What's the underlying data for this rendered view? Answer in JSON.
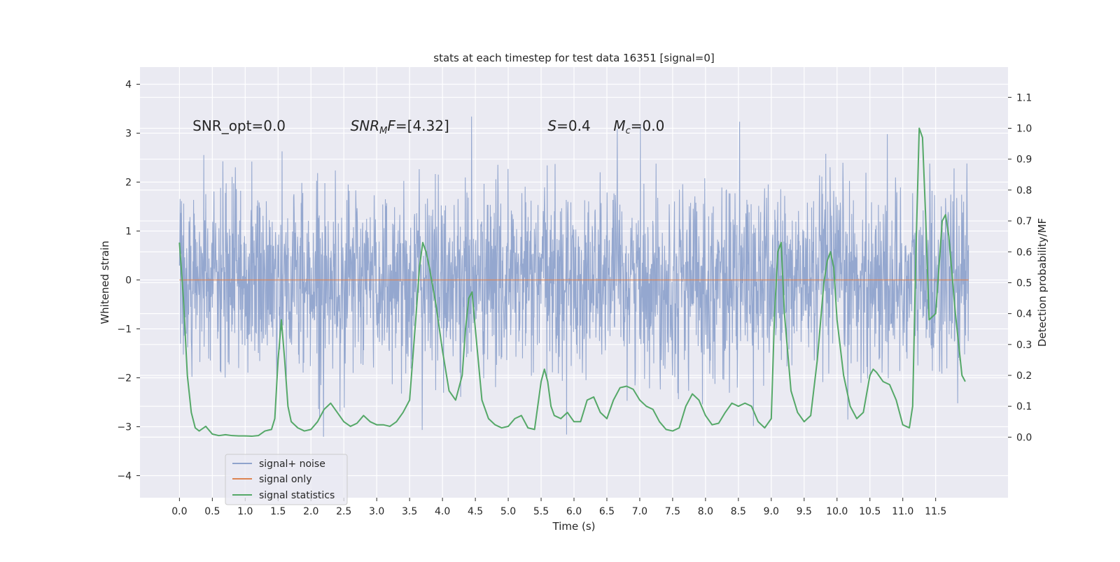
{
  "chart_data": {
    "type": "line",
    "title": "stats at each timestep for test data 16351 [signal=0]",
    "xlabel": "Time (s)",
    "ylabel": "Whitened strain",
    "y2label": "Detection probability/MF",
    "xlim": [
      -0.6,
      12.6
    ],
    "ylim": [
      -4.45,
      4.35
    ],
    "y2lim": [
      -0.196,
      1.198
    ],
    "x_ticks": [
      0.0,
      0.5,
      1.0,
      1.5,
      2.0,
      2.5,
      3.0,
      3.5,
      4.0,
      4.5,
      5.0,
      5.5,
      6.0,
      6.5,
      7.0,
      7.5,
      8.0,
      8.5,
      9.0,
      9.5,
      10.0,
      10.5,
      11.0,
      11.5
    ],
    "x_tick_labels": [
      "0.0",
      "0.5",
      "1.0",
      "1.5",
      "2.0",
      "2.5",
      "3.0",
      "3.5",
      "4.0",
      "4.5",
      "5.0",
      "5.5",
      "6.0",
      "6.5",
      "7.0",
      "7.5",
      "8.0",
      "8.5",
      "9.0",
      "9.5",
      "10.0",
      "10.5",
      "11.0",
      "11.5"
    ],
    "y_ticks": [
      -4,
      -3,
      -2,
      -1,
      0,
      1,
      2,
      3,
      4
    ],
    "y_tick_labels": [
      "−4",
      "−3",
      "−2",
      "−1",
      "0",
      "1",
      "2",
      "3",
      "4"
    ],
    "y2_ticks": [
      0.0,
      0.1,
      0.2,
      0.3,
      0.4,
      0.5,
      0.6,
      0.7,
      0.8,
      0.9,
      1.0,
      1.1
    ],
    "y2_tick_labels": [
      "0.0",
      "0.1",
      "0.2",
      "0.3",
      "0.4",
      "0.5",
      "0.6",
      "0.7",
      "0.8",
      "0.9",
      "1.0",
      "1.1"
    ],
    "grid": true,
    "legend_position": "lower-left",
    "annotations": [
      {
        "text": "SNR_opt=0.0",
        "x": 0.2,
        "y": 3.15
      },
      {
        "text": "SNR",
        "sub": "M",
        "tail": "F=[4.32]",
        "italic": true,
        "x": 2.6,
        "y": 3.15
      },
      {
        "text": "S",
        "tail": "=0.4",
        "italic": true,
        "x": 5.6,
        "y": 3.15
      },
      {
        "text": "M",
        "sub": "c",
        "tail": "=0.0",
        "italic": true,
        "x": 6.6,
        "y": 3.15
      }
    ],
    "series": [
      {
        "name": "signal+ noise",
        "color": "#8fa3cc",
        "axis": "left",
        "style": "noise",
        "x_range": [
          0.0,
          12.0
        ],
        "envelope": {
          "core": 1.2,
          "typical_peak": 2.3,
          "extreme_max": 3.97,
          "extreme_min": -4.07
        }
      },
      {
        "name": "signal only",
        "color": "#dd8452",
        "axis": "left",
        "x": [
          0.0,
          12.0
        ],
        "y": [
          0.0,
          0.0
        ]
      },
      {
        "name": "signal statistics",
        "color": "#55a868",
        "axis": "right",
        "x": [
          0.0,
          0.06,
          0.12,
          0.18,
          0.24,
          0.3,
          0.4,
          0.5,
          0.6,
          0.7,
          0.8,
          0.9,
          1.0,
          1.1,
          1.2,
          1.3,
          1.4,
          1.45,
          1.5,
          1.55,
          1.6,
          1.65,
          1.7,
          1.8,
          1.9,
          2.0,
          2.1,
          2.2,
          2.3,
          2.4,
          2.5,
          2.6,
          2.7,
          2.8,
          2.9,
          3.0,
          3.1,
          3.2,
          3.3,
          3.4,
          3.5,
          3.6,
          3.65,
          3.7,
          3.75,
          3.8,
          3.9,
          4.0,
          4.1,
          4.2,
          4.3,
          4.35,
          4.4,
          4.45,
          4.5,
          4.6,
          4.7,
          4.8,
          4.9,
          5.0,
          5.1,
          5.2,
          5.3,
          5.4,
          5.5,
          5.55,
          5.6,
          5.65,
          5.7,
          5.8,
          5.9,
          6.0,
          6.1,
          6.2,
          6.3,
          6.4,
          6.5,
          6.6,
          6.7,
          6.8,
          6.9,
          7.0,
          7.1,
          7.2,
          7.3,
          7.4,
          7.5,
          7.6,
          7.7,
          7.8,
          7.9,
          8.0,
          8.1,
          8.2,
          8.3,
          8.4,
          8.5,
          8.6,
          8.7,
          8.8,
          8.9,
          9.0,
          9.05,
          9.1,
          9.15,
          9.2,
          9.3,
          9.4,
          9.5,
          9.6,
          9.7,
          9.8,
          9.85,
          9.9,
          9.95,
          10.0,
          10.1,
          10.2,
          10.3,
          10.4,
          10.5,
          10.55,
          10.6,
          10.7,
          10.8,
          10.9,
          11.0,
          11.1,
          11.15,
          11.2,
          11.25,
          11.3,
          11.35,
          11.4,
          11.5,
          11.6,
          11.65,
          11.7,
          11.8,
          11.9,
          11.95
        ],
        "y": [
          0.63,
          0.45,
          0.2,
          0.08,
          0.03,
          0.02,
          0.035,
          0.01,
          0.005,
          0.008,
          0.005,
          0.004,
          0.004,
          0.003,
          0.005,
          0.02,
          0.025,
          0.06,
          0.25,
          0.38,
          0.25,
          0.1,
          0.05,
          0.03,
          0.02,
          0.025,
          0.05,
          0.09,
          0.11,
          0.08,
          0.05,
          0.035,
          0.045,
          0.07,
          0.05,
          0.04,
          0.04,
          0.035,
          0.05,
          0.08,
          0.12,
          0.4,
          0.55,
          0.63,
          0.6,
          0.55,
          0.43,
          0.28,
          0.15,
          0.12,
          0.2,
          0.35,
          0.45,
          0.47,
          0.35,
          0.12,
          0.06,
          0.04,
          0.03,
          0.035,
          0.06,
          0.07,
          0.03,
          0.025,
          0.18,
          0.22,
          0.18,
          0.1,
          0.07,
          0.06,
          0.08,
          0.05,
          0.05,
          0.12,
          0.13,
          0.08,
          0.06,
          0.12,
          0.16,
          0.165,
          0.155,
          0.12,
          0.1,
          0.09,
          0.05,
          0.025,
          0.02,
          0.03,
          0.1,
          0.14,
          0.12,
          0.07,
          0.04,
          0.045,
          0.08,
          0.11,
          0.1,
          0.11,
          0.1,
          0.05,
          0.03,
          0.06,
          0.4,
          0.6,
          0.63,
          0.4,
          0.15,
          0.08,
          0.05,
          0.07,
          0.25,
          0.5,
          0.57,
          0.6,
          0.55,
          0.38,
          0.2,
          0.1,
          0.06,
          0.08,
          0.2,
          0.22,
          0.21,
          0.18,
          0.17,
          0.12,
          0.04,
          0.03,
          0.1,
          0.6,
          1.0,
          0.97,
          0.7,
          0.38,
          0.4,
          0.7,
          0.72,
          0.65,
          0.4,
          0.2,
          0.18
        ]
      }
    ]
  }
}
